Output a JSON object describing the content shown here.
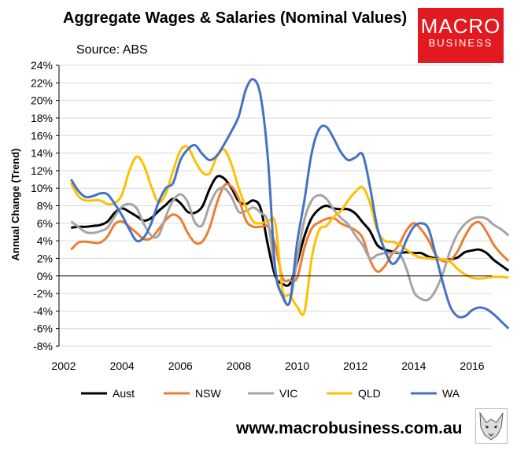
{
  "header": {
    "title": "Aggregate Wages & Salaries (Nominal Values)",
    "source": "Source: ABS"
  },
  "logo": {
    "line1": "MACRO",
    "line2": "BUSINESS",
    "color": "#e2191f"
  },
  "footer": {
    "website": "www.macrobusiness.com.au"
  },
  "chart_data": {
    "type": "line",
    "title": "Aggregate Wages & Salaries (Nominal Values)",
    "xlabel": "",
    "ylabel": "Annual Change (Trend)",
    "xlim": [
      2002,
      2017.3
    ],
    "ylim": [
      -8,
      24
    ],
    "xticks": [
      2002,
      2004,
      2006,
      2008,
      2010,
      2012,
      2014,
      2016
    ],
    "xtick_labels": [
      "2002",
      "2004",
      "2006",
      "2008",
      "2010",
      "2012",
      "2014",
      "2016"
    ],
    "yticks": [
      -8,
      -6,
      -4,
      -2,
      0,
      2,
      4,
      6,
      8,
      10,
      12,
      14,
      16,
      18,
      20,
      22,
      24
    ],
    "ytick_labels": [
      "-8%",
      "-6%",
      "-4%",
      "-2%",
      "0%",
      "2%",
      "4%",
      "6%",
      "8%",
      "10%",
      "12%",
      "14%",
      "16%",
      "18%",
      "20%",
      "22%",
      "24%"
    ],
    "x": [
      2002.25,
      2002.5,
      2002.75,
      2003,
      2003.25,
      2003.5,
      2003.75,
      2004,
      2004.25,
      2004.5,
      2004.75,
      2005,
      2005.25,
      2005.5,
      2005.75,
      2006,
      2006.25,
      2006.5,
      2006.75,
      2007,
      2007.25,
      2007.5,
      2007.75,
      2008,
      2008.25,
      2008.5,
      2008.75,
      2009,
      2009.25,
      2009.5,
      2009.75,
      2010,
      2010.25,
      2010.5,
      2010.75,
      2011,
      2011.25,
      2011.5,
      2011.75,
      2012,
      2012.25,
      2012.5,
      2012.75,
      2013,
      2013.25,
      2013.5,
      2013.75,
      2014,
      2014.25,
      2014.5,
      2014.75,
      2015,
      2015.25,
      2015.5,
      2015.75,
      2016,
      2016.25,
      2016.5,
      2016.75,
      2017,
      2017.25
    ],
    "series": [
      {
        "name": "Aust",
        "color": "#000000",
        "values": [
          5.5,
          5.6,
          5.6,
          5.7,
          5.8,
          6.2,
          7.2,
          7.7,
          7.3,
          6.8,
          6.3,
          6.6,
          7.4,
          8.1,
          8.8,
          8.3,
          7.3,
          7.2,
          7.9,
          9.9,
          11.3,
          11.1,
          10.0,
          8.5,
          8.2,
          8.6,
          7.7,
          3.5,
          0.0,
          -0.9,
          -0.9,
          1.5,
          4.5,
          6.6,
          7.6,
          8.0,
          7.7,
          7.6,
          7.6,
          7.1,
          6.1,
          5.1,
          3.5,
          3.0,
          2.8,
          2.6,
          2.7,
          2.6,
          2.6,
          2.2,
          2.0,
          1.8,
          1.9,
          2.1,
          2.7,
          2.9,
          3.0,
          2.6,
          1.8,
          1.2,
          0.6
        ]
      },
      {
        "name": "NSW",
        "color": "#ed7d31",
        "values": [
          3.0,
          3.8,
          3.9,
          3.8,
          3.8,
          4.5,
          5.9,
          6.2,
          5.6,
          4.9,
          4.2,
          4.3,
          5.3,
          6.4,
          7.0,
          6.5,
          4.9,
          3.8,
          3.9,
          5.5,
          8.3,
          10.3,
          10.2,
          8.8,
          6.3,
          5.6,
          5.6,
          5.6,
          3.5,
          -0.2,
          -0.5,
          -0.2,
          3.2,
          5.4,
          6.1,
          6.5,
          6.6,
          6.0,
          5.6,
          5.2,
          4.3,
          1.8,
          0.5,
          1.1,
          2.5,
          3.6,
          5.2,
          6.0,
          5.3,
          4.1,
          2.4,
          1.7,
          1.8,
          2.8,
          4.5,
          5.8,
          6.1,
          5.0,
          3.5,
          2.5,
          1.7
        ]
      },
      {
        "name": "VIC",
        "color": "#a5a5a5",
        "values": [
          6.2,
          5.6,
          5.0,
          4.9,
          5.1,
          5.5,
          6.8,
          7.9,
          8.2,
          7.7,
          5.9,
          4.6,
          4.6,
          6.8,
          8.6,
          9.3,
          8.4,
          6.1,
          5.8,
          8.1,
          9.7,
          10.0,
          9.0,
          7.3,
          7.4,
          7.8,
          7.2,
          6.1,
          0.5,
          -2.4,
          -3.0,
          1.9,
          6.4,
          8.6,
          9.2,
          8.8,
          7.6,
          6.6,
          5.9,
          4.6,
          3.5,
          2.0,
          2.4,
          2.6,
          2.6,
          2.6,
          0.8,
          -1.8,
          -2.6,
          -2.7,
          -1.6,
          0.3,
          2.9,
          4.8,
          5.9,
          6.5,
          6.7,
          6.5,
          5.8,
          5.3,
          4.6
        ]
      },
      {
        "name": "QLD",
        "color": "#ffc000",
        "values": [
          10.6,
          9.1,
          8.6,
          8.6,
          8.6,
          8.2,
          8.3,
          9.3,
          12.0,
          13.6,
          12.6,
          10.2,
          8.4,
          9.4,
          12.0,
          14.3,
          14.7,
          13.1,
          11.8,
          11.7,
          13.6,
          14.4,
          12.7,
          10.0,
          7.8,
          6.2,
          6.0,
          6.2,
          6.0,
          -1.6,
          -2.2,
          -3.5,
          -4.1,
          2.0,
          5.2,
          5.7,
          6.7,
          7.4,
          8.6,
          9.6,
          10.1,
          8.3,
          5.2,
          4.0,
          3.9,
          3.6,
          3.0,
          2.4,
          2.1,
          2.0,
          1.9,
          1.9,
          1.6,
          0.8,
          0.2,
          -0.2,
          -0.3,
          -0.2,
          -0.1,
          -0.1,
          -0.2
        ]
      },
      {
        "name": "WA",
        "color": "#4472c4",
        "values": [
          11.0,
          9.7,
          9.0,
          9.1,
          9.4,
          9.3,
          8.2,
          6.9,
          5.3,
          4.0,
          4.4,
          6.0,
          8.4,
          10.0,
          10.6,
          13.2,
          14.4,
          14.9,
          13.9,
          13.2,
          13.7,
          15.0,
          16.5,
          18.2,
          21.3,
          22.4,
          20.5,
          13.3,
          0.8,
          -2.2,
          -2.9,
          3.8,
          8.6,
          14.0,
          16.7,
          17.0,
          15.7,
          14.1,
          13.2,
          13.5,
          13.8,
          10.1,
          5.5,
          3.0,
          1.4,
          2.1,
          4.1,
          5.6,
          6.0,
          5.4,
          2.4,
          -0.8,
          -3.5,
          -4.6,
          -4.6,
          -3.9,
          -3.6,
          -3.8,
          -4.4,
          -5.2,
          -6.0
        ]
      }
    ]
  }
}
